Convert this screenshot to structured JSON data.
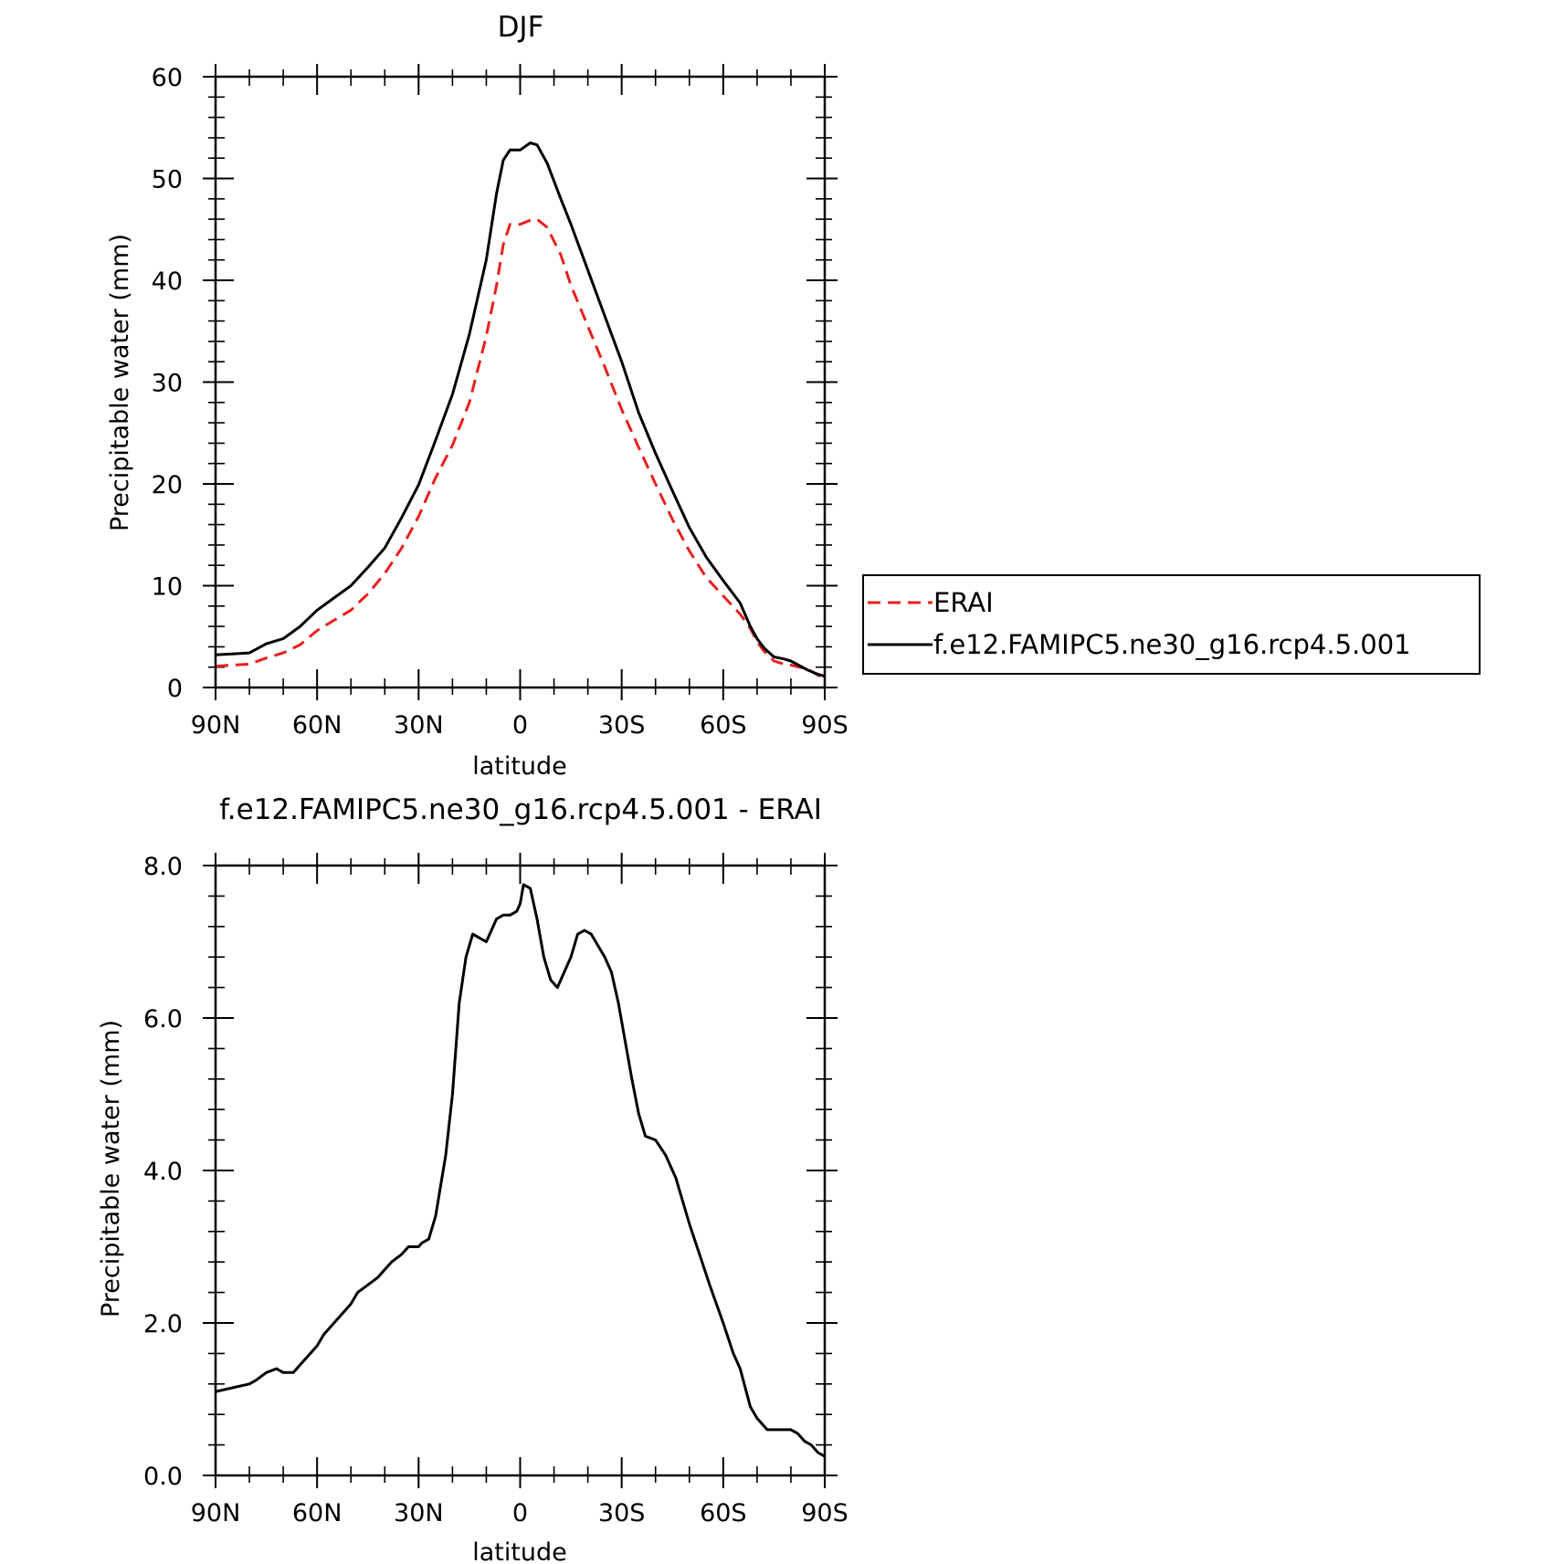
{
  "chart_data": [
    {
      "type": "line",
      "title": "DJF",
      "xlabel": "latitude",
      "ylabel": "Precipitable water (mm)",
      "xlim": [
        90,
        -90
      ],
      "ylim": [
        0,
        60
      ],
      "xticks": [
        {
          "value": 90,
          "label": "90N"
        },
        {
          "value": 60,
          "label": "60N"
        },
        {
          "value": 30,
          "label": "30N"
        },
        {
          "value": 0,
          "label": "0"
        },
        {
          "value": -30,
          "label": "30S"
        },
        {
          "value": -60,
          "label": "60S"
        },
        {
          "value": -90,
          "label": "90S"
        }
      ],
      "yticks": [
        {
          "value": 0,
          "label": "0"
        },
        {
          "value": 10,
          "label": "10"
        },
        {
          "value": 20,
          "label": "20"
        },
        {
          "value": 30,
          "label": "30"
        },
        {
          "value": 40,
          "label": "40"
        },
        {
          "value": 50,
          "label": "50"
        },
        {
          "value": 60,
          "label": "60"
        }
      ],
      "legend": "right",
      "series": [
        {
          "name": "ERAI",
          "color": "#e8201e",
          "dash": true,
          "x": [
            90,
            80,
            75,
            70,
            65,
            60,
            55,
            50,
            45,
            40,
            35,
            30,
            25,
            20,
            15,
            10,
            7,
            5,
            3,
            0,
            -3,
            -5,
            -8,
            -12,
            -15,
            -20,
            -25,
            -30,
            -35,
            -40,
            -45,
            -50,
            -55,
            -60,
            -65,
            -68,
            -70,
            -72,
            -75,
            -78,
            -80,
            -85,
            -88,
            -90
          ],
          "y": [
            2.1,
            2.3,
            2.9,
            3.4,
            4.2,
            5.6,
            6.6,
            7.6,
            9.2,
            11.2,
            13.7,
            16.8,
            20.6,
            23.8,
            28.0,
            34.5,
            39.5,
            43.5,
            45.5,
            45.5,
            45.9,
            46.0,
            45.2,
            42.5,
            39.5,
            35.5,
            31.5,
            27.3,
            23.6,
            20.0,
            16.5,
            13.4,
            10.8,
            9.0,
            7.2,
            5.8,
            4.5,
            3.6,
            2.6,
            2.3,
            2.2,
            1.8,
            1.2,
            1.0
          ]
        },
        {
          "name": "f.e12.FAMIPC5.ne30_g16.rcp4.5.001",
          "color": "#000000",
          "dash": false,
          "x": [
            90,
            80,
            75,
            70,
            65,
            60,
            55,
            50,
            45,
            40,
            35,
            30,
            25,
            20,
            15,
            10,
            7,
            5,
            3,
            0,
            -3,
            -5,
            -8,
            -12,
            -15,
            -20,
            -25,
            -30,
            -35,
            -40,
            -45,
            -50,
            -55,
            -60,
            -65,
            -68,
            -70,
            -72,
            -75,
            -78,
            -80,
            -85,
            -88,
            -90
          ],
          "y": [
            3.2,
            3.4,
            4.3,
            4.8,
            6.0,
            7.6,
            8.8,
            10.0,
            11.8,
            13.7,
            16.7,
            19.9,
            24.3,
            28.8,
            34.7,
            42.0,
            48.5,
            51.8,
            52.8,
            52.8,
            53.5,
            53.3,
            51.5,
            48.0,
            45.5,
            41.0,
            36.5,
            32.0,
            27.0,
            23.0,
            19.3,
            15.7,
            12.8,
            10.5,
            8.3,
            6.0,
            4.8,
            3.9,
            3.0,
            2.8,
            2.6,
            1.7,
            1.3,
            1.1
          ]
        }
      ]
    },
    {
      "type": "line",
      "title": "f.e12.FAMIPC5.ne30_g16.rcp4.5.001 - ERAI",
      "xlabel": "latitude",
      "ylabel": "Precipitable water (mm)",
      "xlim": [
        90,
        -90
      ],
      "ylim": [
        0,
        8
      ],
      "xticks": [
        {
          "value": 90,
          "label": "90N"
        },
        {
          "value": 60,
          "label": "60N"
        },
        {
          "value": 30,
          "label": "30N"
        },
        {
          "value": 0,
          "label": "0"
        },
        {
          "value": -30,
          "label": "30S"
        },
        {
          "value": -60,
          "label": "60S"
        },
        {
          "value": -90,
          "label": "90S"
        }
      ],
      "yticks": [
        {
          "value": 0,
          "label": "0.0"
        },
        {
          "value": 2,
          "label": "2.0"
        },
        {
          "value": 4,
          "label": "4.0"
        },
        {
          "value": 6,
          "label": "6.0"
        },
        {
          "value": 8,
          "label": "8.0"
        }
      ],
      "series": [
        {
          "color": "#000000",
          "dash": false,
          "x": [
            90,
            85,
            80,
            78,
            75,
            72,
            70,
            67,
            65,
            62,
            60,
            58,
            55,
            52,
            50,
            48,
            45,
            42,
            40,
            38,
            35,
            33,
            31,
            30,
            29,
            27,
            25,
            22,
            20,
            18,
            16,
            14,
            12,
            10,
            9,
            7,
            5,
            3,
            1,
            0,
            -1,
            -3,
            -5,
            -7,
            -9,
            -11,
            -13,
            -15,
            -17,
            -19,
            -21,
            -23,
            -25,
            -27,
            -29,
            -31,
            -33,
            -35,
            -37,
            -40,
            -43,
            -46,
            -48,
            -50,
            -53,
            -56,
            -60,
            -63,
            -65,
            -68,
            -70,
            -73,
            -76,
            -80,
            -82,
            -84,
            -86,
            -88,
            -90
          ],
          "y": [
            1.1,
            1.15,
            1.2,
            1.25,
            1.35,
            1.4,
            1.35,
            1.35,
            1.45,
            1.6,
            1.7,
            1.85,
            2.0,
            2.15,
            2.25,
            2.4,
            2.5,
            2.6,
            2.7,
            2.8,
            2.9,
            3.0,
            3.0,
            3.0,
            3.05,
            3.1,
            3.4,
            4.2,
            5.0,
            6.2,
            6.8,
            7.1,
            7.05,
            7.0,
            7.1,
            7.3,
            7.35,
            7.35,
            7.4,
            7.5,
            7.75,
            7.7,
            7.3,
            6.8,
            6.5,
            6.4,
            6.6,
            6.8,
            7.1,
            7.15,
            7.1,
            6.95,
            6.8,
            6.6,
            6.2,
            5.7,
            5.2,
            4.75,
            4.45,
            4.4,
            4.2,
            3.9,
            3.6,
            3.3,
            2.9,
            2.5,
            2.0,
            1.6,
            1.4,
            0.9,
            0.75,
            0.6,
            0.6,
            0.6,
            0.55,
            0.45,
            0.4,
            0.3,
            0.25
          ]
        }
      ]
    }
  ]
}
